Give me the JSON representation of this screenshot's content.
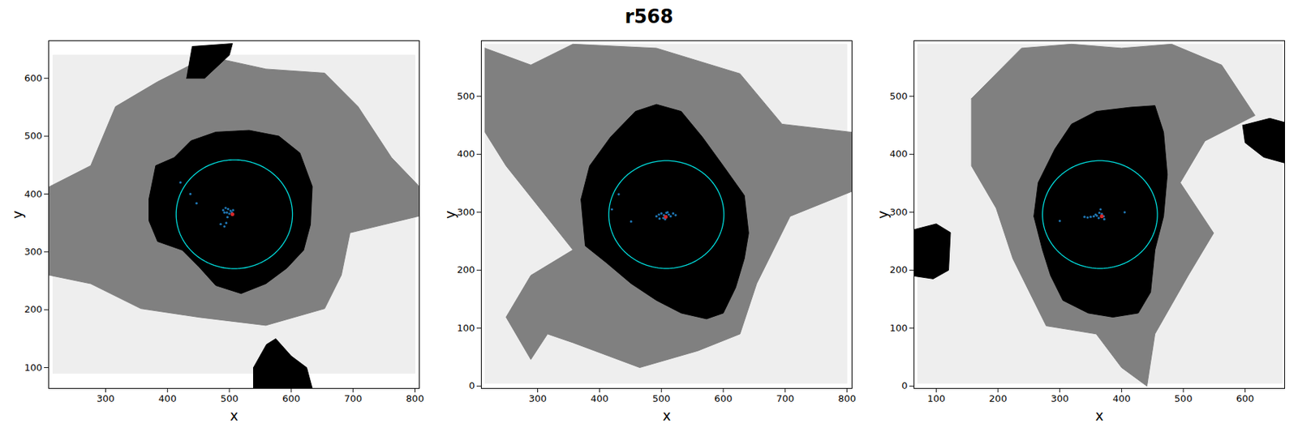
{
  "title": "r568",
  "chart_data": [
    {
      "type": "scatter",
      "xlabel": "x",
      "ylabel": "y",
      "xlim": [
        208,
        807
      ],
      "ylim": [
        64,
        665
      ],
      "xticks": [
        300,
        400,
        500,
        600,
        700,
        800
      ],
      "yticks": [
        100,
        200,
        300,
        400,
        500,
        600
      ],
      "regions": [
        {
          "color": "#eeeeee",
          "points": [
            [
              215,
              90
            ],
            [
              215,
              640
            ],
            [
              800,
              640
            ],
            [
              800,
              90
            ]
          ]
        },
        {
          "color": "#808080",
          "points": [
            [
              208,
              412
            ],
            [
              276,
              449
            ],
            [
              316,
              551
            ],
            [
              384,
              594
            ],
            [
              465,
              638
            ],
            [
              559,
              616
            ],
            [
              654,
              609
            ],
            [
              708,
              551
            ],
            [
              762,
              463
            ],
            [
              807,
              413
            ],
            [
              807,
              362
            ],
            [
              749,
              347
            ],
            [
              695,
              333
            ],
            [
              681,
              260
            ],
            [
              654,
              202
            ],
            [
              559,
              173
            ],
            [
              451,
              187
            ],
            [
              357,
              202
            ],
            [
              276,
              245
            ],
            [
              208,
              260
            ]
          ]
        },
        {
          "color": "#000000",
          "points": [
            [
              370,
              391
            ],
            [
              381,
              449
            ],
            [
              411,
              463
            ],
            [
              438,
              492
            ],
            [
              478,
              507
            ],
            [
              532,
              510
            ],
            [
              580,
              500
            ],
            [
              614,
              471
            ],
            [
              634,
              413
            ],
            [
              631,
              347
            ],
            [
              620,
              303
            ],
            [
              593,
              272
            ],
            [
              559,
              245
            ],
            [
              519,
              228
            ],
            [
              478,
              242
            ],
            [
              451,
              274
            ],
            [
              424,
              303
            ],
            [
              384,
              318
            ],
            [
              370,
              354
            ]
          ]
        },
        {
          "color": "#000000",
          "points": [
            [
              431,
              600
            ],
            [
              440,
              655
            ],
            [
              505,
              660
            ],
            [
              500,
              640
            ],
            [
              460,
              600
            ]
          ]
        },
        {
          "color": "#000000",
          "points": [
            [
              539,
              100
            ],
            [
              560,
              140
            ],
            [
              575,
              150
            ],
            [
              600,
              120
            ],
            [
              625,
              100
            ],
            [
              634,
              64
            ],
            [
              539,
              64
            ]
          ]
        }
      ],
      "points": {
        "color": "#1f77b4",
        "values": [
          [
            490,
            372
          ],
          [
            494,
            376
          ],
          [
            498,
            374
          ],
          [
            502,
            371
          ],
          [
            506,
            372
          ],
          [
            496,
            368
          ],
          [
            500,
            366
          ],
          [
            504,
            368
          ],
          [
            492,
            368
          ],
          [
            497,
            360
          ],
          [
            495,
            350
          ],
          [
            492,
            344
          ],
          [
            486,
            348
          ],
          [
            437,
            400
          ],
          [
            447,
            384
          ],
          [
            421,
            420
          ]
        ]
      },
      "highlight": {
        "color": "#d62728",
        "values": [
          [
            505,
            365
          ]
        ]
      },
      "circle": {
        "color": "#00e5e5",
        "center": [
          508,
          365
        ],
        "radius": 94
      }
    },
    {
      "type": "scatter",
      "xlabel": "x",
      "ylabel": "y",
      "xlim": [
        209,
        808
      ],
      "ylim": [
        -4,
        596
      ],
      "xticks": [
        300,
        400,
        500,
        600,
        700,
        800
      ],
      "yticks": [
        0,
        100,
        200,
        300,
        400,
        500
      ],
      "regions": [
        {
          "color": "#eeeeee",
          "points": [
            [
              215,
              5
            ],
            [
              215,
              590
            ],
            [
              800,
              590
            ],
            [
              800,
              5
            ]
          ]
        },
        {
          "color": "#808080",
          "points": [
            [
              215,
              583
            ],
            [
              289,
              554
            ],
            [
              357,
              590
            ],
            [
              492,
              583
            ],
            [
              627,
              539
            ],
            [
              695,
              452
            ],
            [
              808,
              438
            ],
            [
              808,
              336
            ],
            [
              708,
              293
            ],
            [
              654,
              177
            ],
            [
              627,
              90
            ],
            [
              559,
              61
            ],
            [
              465,
              32
            ],
            [
              357,
              75
            ],
            [
              316,
              90
            ],
            [
              289,
              46
            ],
            [
              249,
              119
            ],
            [
              289,
              191
            ],
            [
              357,
              235
            ],
            [
              249,
              380
            ],
            [
              215,
              438
            ]
          ]
        },
        {
          "color": "#000000",
          "points": [
            [
              370,
              322
            ],
            [
              384,
              380
            ],
            [
              418,
              430
            ],
            [
              458,
              474
            ],
            [
              492,
              486
            ],
            [
              532,
              474
            ],
            [
              566,
              430
            ],
            [
              600,
              380
            ],
            [
              634,
              329
            ],
            [
              641,
              264
            ],
            [
              634,
              220
            ],
            [
              620,
              170
            ],
            [
              600,
              126
            ],
            [
              573,
              116
            ],
            [
              532,
              126
            ],
            [
              492,
              148
            ],
            [
              451,
              177
            ],
            [
              411,
              213
            ],
            [
              377,
              242
            ]
          ]
        }
      ],
      "points": {
        "color": "#1f77b4",
        "values": [
          [
            492,
            293
          ],
          [
            496,
            296
          ],
          [
            500,
            298
          ],
          [
            504,
            295
          ],
          [
            508,
            299
          ],
          [
            512,
            296
          ],
          [
            515,
            293
          ],
          [
            519,
            298
          ],
          [
            523,
            295
          ],
          [
            497,
            289
          ],
          [
            503,
            290
          ],
          [
            510,
            300
          ],
          [
            506,
            288
          ],
          [
            431,
            331
          ],
          [
            451,
            284
          ],
          [
            420,
            305
          ]
        ]
      },
      "highlight": {
        "color": "#d62728",
        "values": [
          [
            507,
            292
          ]
        ]
      },
      "circle": {
        "color": "#00e5e5",
        "center": [
          508,
          296
        ],
        "radius": 93
      }
    },
    {
      "type": "scatter",
      "xlabel": "x",
      "ylabel": "y",
      "xlim": [
        64,
        664
      ],
      "ylim": [
        -4,
        596
      ],
      "xticks": [
        100,
        200,
        300,
        400,
        500,
        600
      ],
      "yticks": [
        0,
        100,
        200,
        300,
        400,
        500
      ],
      "regions": [
        {
          "color": "#eeeeee",
          "points": [
            [
              70,
              5
            ],
            [
              70,
              590
            ],
            [
              660,
              590
            ],
            [
              660,
              5
            ]
          ]
        },
        {
          "color": "#808080",
          "points": [
            [
              157,
              496
            ],
            [
              238,
              583
            ],
            [
              319,
              590
            ],
            [
              400,
              583
            ],
            [
              481,
              590
            ],
            [
              562,
              554
            ],
            [
              616,
              467
            ],
            [
              535,
              423
            ],
            [
              495,
              351
            ],
            [
              549,
              264
            ],
            [
              508,
              191
            ],
            [
              454,
              90
            ],
            [
              441,
              0
            ],
            [
              400,
              32
            ],
            [
              359,
              90
            ],
            [
              278,
              104
            ],
            [
              224,
              220
            ],
            [
              197,
              307
            ],
            [
              157,
              380
            ]
          ]
        },
        {
          "color": "#000000",
          "points": [
            [
              258,
              293
            ],
            [
              265,
              351
            ],
            [
              292,
              409
            ],
            [
              319,
              452
            ],
            [
              359,
              474
            ],
            [
              414,
              481
            ],
            [
              454,
              484
            ],
            [
              468,
              438
            ],
            [
              474,
              365
            ],
            [
              468,
              293
            ],
            [
              454,
              235
            ],
            [
              447,
              162
            ],
            [
              427,
              126
            ],
            [
              386,
              119
            ],
            [
              346,
              126
            ],
            [
              305,
              148
            ],
            [
              285,
              191
            ],
            [
              272,
              235
            ]
          ]
        },
        {
          "color": "#000000",
          "points": [
            [
              64,
              270
            ],
            [
              100,
              280
            ],
            [
              123,
              265
            ],
            [
              120,
              200
            ],
            [
              95,
              185
            ],
            [
              64,
              190
            ]
          ]
        },
        {
          "color": "#000000",
          "points": [
            [
              596,
              450
            ],
            [
              640,
              462
            ],
            [
              664,
              455
            ],
            [
              664,
              385
            ],
            [
              630,
              395
            ],
            [
              600,
              420
            ]
          ]
        }
      ],
      "points": {
        "color": "#1f77b4",
        "values": [
          [
            340,
            292
          ],
          [
            345,
            291
          ],
          [
            350,
            292
          ],
          [
            355,
            293
          ],
          [
            360,
            294
          ],
          [
            364,
            299
          ],
          [
            366,
            305
          ],
          [
            368,
            297
          ],
          [
            371,
            293
          ],
          [
            363,
            290
          ],
          [
            358,
            296
          ],
          [
            405,
            300
          ],
          [
            300,
            285
          ],
          [
            372,
            288
          ]
        ]
      },
      "highlight": {
        "color": "#d62728",
        "values": [
          [
            368,
            293
          ]
        ]
      },
      "circle": {
        "color": "#00e5e5",
        "center": [
          365,
          296
        ],
        "radius": 93
      }
    }
  ]
}
